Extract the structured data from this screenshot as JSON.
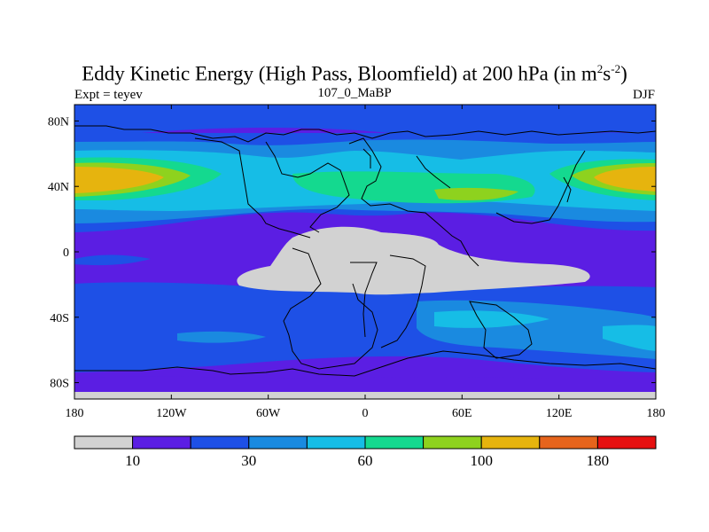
{
  "title": {
    "main": "Eddy Kinetic Energy (High Pass, Bloomfield) at 200 hPa (in m",
    "sup1": "2",
    "mid": "s",
    "sup2": "-2",
    "close": ")"
  },
  "left_subtitle": "Expt = teyev",
  "center_subtitle": "107_0_MaBP",
  "right_subtitle": "DJF",
  "map": {
    "projection": "cylindrical-equidistant",
    "lon_range": [
      -180,
      180
    ],
    "lat_range": [
      -90,
      90
    ],
    "x_ticks": [
      {
        "value": -180,
        "label": "180"
      },
      {
        "value": -120,
        "label": "120W"
      },
      {
        "value": -60,
        "label": "60W"
      },
      {
        "value": 0,
        "label": "0"
      },
      {
        "value": 60,
        "label": "60E"
      },
      {
        "value": 120,
        "label": "120E"
      },
      {
        "value": 180,
        "label": "180"
      }
    ],
    "y_ticks": [
      {
        "value": 80,
        "label": "80N"
      },
      {
        "value": 40,
        "label": "40N"
      },
      {
        "value": 0,
        "label": "0"
      },
      {
        "value": -40,
        "label": "40S"
      },
      {
        "value": -80,
        "label": "80S"
      }
    ]
  },
  "colorbar": {
    "colors": [
      "#d2d2d2",
      "#5b1ee3",
      "#1e50e6",
      "#1a8ae0",
      "#16bde6",
      "#14d98f",
      "#8ed21e",
      "#e6b40e",
      "#e6641c",
      "#e61010"
    ],
    "labels": [
      {
        "boundary": 1,
        "text": "10"
      },
      {
        "boundary": 3,
        "text": "30"
      },
      {
        "boundary": 5,
        "text": "60"
      },
      {
        "boundary": 7,
        "text": "100"
      },
      {
        "boundary": 9,
        "text": "180"
      }
    ]
  }
}
